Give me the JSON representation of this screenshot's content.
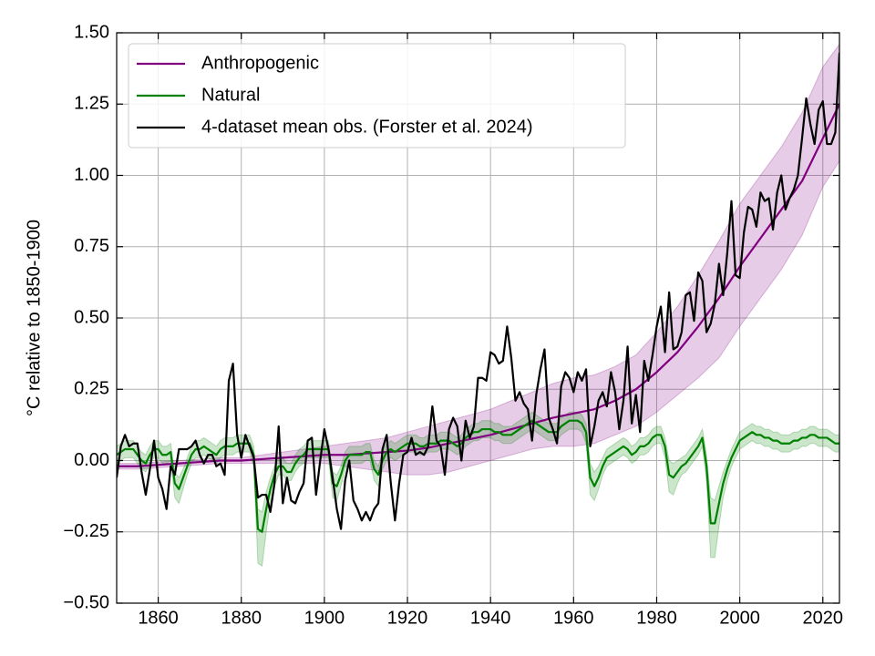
{
  "chart_data": {
    "type": "line",
    "ylabel": "°C relative to 1850-1900",
    "xlim": [
      1850,
      2024
    ],
    "ylim": [
      -0.5,
      1.5
    ],
    "xticks": [
      1860,
      1880,
      1900,
      1920,
      1940,
      1960,
      1980,
      2000,
      2020
    ],
    "yticks": [
      {
        "value": -0.5,
        "label": "−0.50"
      },
      {
        "value": -0.25,
        "label": "−0.25"
      },
      {
        "value": 0,
        "label": "0.00"
      },
      {
        "value": 0.25,
        "label": "0.25"
      },
      {
        "value": 0.5,
        "label": "0.50"
      },
      {
        "value": 0.75,
        "label": "0.75"
      },
      {
        "value": 1,
        "label": "1.00"
      },
      {
        "value": 1.25,
        "label": "1.25"
      },
      {
        "value": 1.5,
        "label": "1.50"
      }
    ],
    "grid": true,
    "legend": "upper left",
    "x": [
      1850,
      1851,
      1852,
      1853,
      1854,
      1855,
      1856,
      1857,
      1858,
      1859,
      1860,
      1861,
      1862,
      1863,
      1864,
      1865,
      1866,
      1867,
      1868,
      1869,
      1870,
      1871,
      1872,
      1873,
      1874,
      1875,
      1876,
      1877,
      1878,
      1879,
      1880,
      1881,
      1882,
      1883,
      1884,
      1885,
      1886,
      1887,
      1888,
      1889,
      1890,
      1891,
      1892,
      1893,
      1894,
      1895,
      1896,
      1897,
      1898,
      1899,
      1900,
      1901,
      1902,
      1903,
      1904,
      1905,
      1906,
      1907,
      1908,
      1909,
      1910,
      1911,
      1912,
      1913,
      1914,
      1915,
      1916,
      1917,
      1918,
      1919,
      1920,
      1921,
      1922,
      1923,
      1924,
      1925,
      1926,
      1927,
      1928,
      1929,
      1930,
      1931,
      1932,
      1933,
      1934,
      1935,
      1936,
      1937,
      1938,
      1939,
      1940,
      1941,
      1942,
      1943,
      1944,
      1945,
      1946,
      1947,
      1948,
      1949,
      1950,
      1951,
      1952,
      1953,
      1954,
      1955,
      1956,
      1957,
      1958,
      1959,
      1960,
      1961,
      1962,
      1963,
      1964,
      1965,
      1966,
      1967,
      1968,
      1969,
      1970,
      1971,
      1972,
      1973,
      1974,
      1975,
      1976,
      1977,
      1978,
      1979,
      1980,
      1981,
      1982,
      1983,
      1984,
      1985,
      1986,
      1987,
      1988,
      1989,
      1990,
      1991,
      1992,
      1993,
      1994,
      1995,
      1996,
      1997,
      1998,
      1999,
      2000,
      2001,
      2002,
      2003,
      2004,
      2005,
      2006,
      2007,
      2008,
      2009,
      2010,
      2011,
      2012,
      2013,
      2014,
      2015,
      2016,
      2017,
      2018,
      2019,
      2020,
      2021,
      2022,
      2023,
      2024
    ],
    "series": [
      {
        "name": "Anthropogenic",
        "color": "#800080",
        "x": [
          1850,
          1855,
          1860,
          1865,
          1870,
          1875,
          1880,
          1885,
          1890,
          1895,
          1900,
          1905,
          1910,
          1915,
          1920,
          1925,
          1930,
          1935,
          1940,
          1945,
          1950,
          1955,
          1960,
          1965,
          1970,
          1975,
          1980,
          1985,
          1990,
          1995,
          2000,
          2005,
          2010,
          2015,
          2020,
          2024
        ],
        "values": [
          -0.02,
          -0.02,
          -0.015,
          -0.01,
          -0.005,
          0.0,
          0.0,
          0.005,
          0.01,
          0.015,
          0.02,
          0.02,
          0.025,
          0.03,
          0.035,
          0.045,
          0.06,
          0.075,
          0.09,
          0.11,
          0.13,
          0.15,
          0.165,
          0.18,
          0.21,
          0.25,
          0.31,
          0.38,
          0.47,
          0.57,
          0.68,
          0.78,
          0.88,
          0.98,
          1.13,
          1.25
        ],
        "band_lower": [
          -0.03,
          -0.03,
          -0.025,
          -0.02,
          -0.015,
          -0.01,
          -0.01,
          -0.01,
          -0.01,
          -0.01,
          -0.01,
          -0.02,
          -0.03,
          -0.04,
          -0.05,
          -0.05,
          -0.04,
          -0.02,
          0.0,
          0.02,
          0.04,
          0.05,
          0.05,
          0.06,
          0.09,
          0.12,
          0.17,
          0.23,
          0.29,
          0.36,
          0.47,
          0.57,
          0.67,
          0.79,
          0.96,
          1.05
        ],
        "band_upper": [
          -0.01,
          -0.01,
          -0.005,
          0.0,
          0.005,
          0.01,
          0.01,
          0.02,
          0.03,
          0.04,
          0.05,
          0.06,
          0.07,
          0.08,
          0.1,
          0.12,
          0.14,
          0.16,
          0.18,
          0.21,
          0.24,
          0.27,
          0.29,
          0.3,
          0.33,
          0.37,
          0.45,
          0.54,
          0.65,
          0.77,
          0.9,
          1.0,
          1.1,
          1.22,
          1.38,
          1.46
        ]
      },
      {
        "name": "Natural",
        "color": "#008000",
        "values": [
          0.02,
          0.03,
          0.04,
          0.04,
          0.04,
          0.02,
          0.0,
          -0.01,
          0.02,
          0.04,
          0.04,
          0.02,
          0.02,
          0.03,
          -0.08,
          -0.1,
          -0.06,
          -0.02,
          0.02,
          0.04,
          0.04,
          0.05,
          0.04,
          0.03,
          0.02,
          0.04,
          0.05,
          0.05,
          0.05,
          0.06,
          0.06,
          0.06,
          0.06,
          0.02,
          -0.24,
          -0.25,
          -0.17,
          -0.1,
          -0.05,
          -0.02,
          -0.02,
          -0.04,
          -0.04,
          -0.01,
          0.01,
          0.02,
          0.04,
          0.04,
          0.04,
          0.04,
          0.04,
          0.04,
          -0.08,
          -0.09,
          -0.05,
          0.0,
          0.02,
          0.02,
          0.02,
          0.02,
          0.03,
          0.03,
          -0.03,
          -0.05,
          0.0,
          0.03,
          0.04,
          0.03,
          0.04,
          0.05,
          0.06,
          0.06,
          0.06,
          0.05,
          0.05,
          0.06,
          0.06,
          0.06,
          0.07,
          0.07,
          0.07,
          0.06,
          0.05,
          0.06,
          0.08,
          0.09,
          0.1,
          0.1,
          0.11,
          0.11,
          0.11,
          0.1,
          0.1,
          0.09,
          0.09,
          0.09,
          0.1,
          0.11,
          0.12,
          0.13,
          0.14,
          0.13,
          0.12,
          0.11,
          0.1,
          0.1,
          0.1,
          0.12,
          0.13,
          0.14,
          0.14,
          0.14,
          0.13,
          0.1,
          -0.06,
          -0.09,
          -0.06,
          -0.02,
          0.01,
          0.02,
          0.03,
          0.04,
          0.05,
          0.04,
          0.02,
          0.03,
          0.05,
          0.05,
          0.06,
          0.08,
          0.09,
          0.09,
          0.05,
          -0.05,
          -0.06,
          -0.04,
          -0.02,
          -0.01,
          0.01,
          0.03,
          0.05,
          0.08,
          -0.02,
          -0.22,
          -0.22,
          -0.15,
          -0.08,
          -0.03,
          0.01,
          0.04,
          0.07,
          0.08,
          0.09,
          0.1,
          0.09,
          0.09,
          0.08,
          0.08,
          0.07,
          0.07,
          0.06,
          0.06,
          0.06,
          0.07,
          0.07,
          0.08,
          0.08,
          0.09,
          0.09,
          0.08,
          0.08,
          0.08,
          0.07,
          0.06,
          0.06
        ],
        "band_lower": [
          -0.01,
          0.0,
          0.01,
          0.01,
          0.01,
          -0.01,
          -0.03,
          -0.04,
          -0.01,
          0.01,
          0.01,
          -0.01,
          -0.01,
          0.0,
          -0.13,
          -0.15,
          -0.1,
          -0.05,
          -0.01,
          0.01,
          0.01,
          0.02,
          0.01,
          0.0,
          -0.01,
          0.01,
          0.02,
          0.02,
          0.02,
          0.03,
          0.03,
          0.03,
          0.03,
          -0.02,
          -0.36,
          -0.37,
          -0.25,
          -0.15,
          -0.09,
          -0.05,
          -0.05,
          -0.07,
          -0.07,
          -0.04,
          -0.02,
          -0.01,
          0.01,
          0.01,
          0.01,
          0.01,
          0.01,
          0.01,
          -0.13,
          -0.14,
          -0.09,
          -0.03,
          -0.01,
          -0.01,
          -0.01,
          -0.01,
          0.0,
          0.0,
          -0.07,
          -0.09,
          -0.03,
          0.0,
          0.01,
          0.0,
          0.01,
          0.02,
          0.03,
          0.03,
          0.03,
          0.02,
          0.02,
          0.03,
          0.03,
          0.03,
          0.04,
          0.04,
          0.04,
          0.03,
          0.02,
          0.03,
          0.05,
          0.06,
          0.07,
          0.07,
          0.08,
          0.08,
          0.08,
          0.07,
          0.07,
          0.06,
          0.06,
          0.06,
          0.07,
          0.08,
          0.09,
          0.1,
          0.11,
          0.1,
          0.09,
          0.08,
          0.07,
          0.07,
          0.07,
          0.09,
          0.1,
          0.11,
          0.11,
          0.11,
          0.1,
          0.06,
          -0.12,
          -0.14,
          -0.1,
          -0.05,
          -0.02,
          -0.01,
          0.0,
          0.01,
          0.02,
          0.01,
          -0.01,
          0.0,
          0.02,
          0.02,
          0.03,
          0.05,
          0.06,
          0.06,
          0.01,
          -0.11,
          -0.12,
          -0.08,
          -0.05,
          -0.04,
          -0.02,
          0.0,
          0.02,
          0.05,
          -0.07,
          -0.34,
          -0.34,
          -0.23,
          -0.13,
          -0.07,
          -0.02,
          0.01,
          0.04,
          0.05,
          0.06,
          0.07,
          0.06,
          0.06,
          0.05,
          0.05,
          0.04,
          0.04,
          0.03,
          0.03,
          0.03,
          0.04,
          0.04,
          0.05,
          0.05,
          0.06,
          0.06,
          0.05,
          0.05,
          0.05,
          0.04,
          0.03,
          0.03
        ],
        "band_upper": [
          0.05,
          0.06,
          0.07,
          0.07,
          0.07,
          0.05,
          0.03,
          0.02,
          0.05,
          0.07,
          0.07,
          0.05,
          0.05,
          0.06,
          -0.04,
          -0.06,
          -0.03,
          0.01,
          0.05,
          0.07,
          0.07,
          0.08,
          0.07,
          0.06,
          0.05,
          0.07,
          0.08,
          0.08,
          0.08,
          0.09,
          0.09,
          0.09,
          0.09,
          0.05,
          -0.17,
          -0.18,
          -0.11,
          -0.06,
          -0.02,
          0.01,
          0.01,
          -0.01,
          -0.01,
          0.02,
          0.04,
          0.05,
          0.07,
          0.07,
          0.07,
          0.07,
          0.07,
          0.07,
          -0.04,
          -0.05,
          -0.02,
          0.03,
          0.05,
          0.05,
          0.05,
          0.05,
          0.06,
          0.06,
          0.0,
          -0.02,
          0.03,
          0.06,
          0.07,
          0.06,
          0.07,
          0.08,
          0.09,
          0.09,
          0.09,
          0.08,
          0.08,
          0.09,
          0.09,
          0.09,
          0.1,
          0.1,
          0.1,
          0.09,
          0.08,
          0.09,
          0.11,
          0.12,
          0.13,
          0.13,
          0.14,
          0.14,
          0.14,
          0.13,
          0.13,
          0.12,
          0.12,
          0.12,
          0.13,
          0.14,
          0.15,
          0.16,
          0.17,
          0.16,
          0.15,
          0.14,
          0.13,
          0.13,
          0.13,
          0.15,
          0.16,
          0.17,
          0.17,
          0.17,
          0.16,
          0.13,
          -0.01,
          -0.04,
          -0.02,
          0.01,
          0.04,
          0.05,
          0.06,
          0.07,
          0.08,
          0.07,
          0.05,
          0.06,
          0.08,
          0.08,
          0.09,
          0.11,
          0.12,
          0.12,
          0.08,
          0.0,
          -0.01,
          0.0,
          0.01,
          0.02,
          0.04,
          0.06,
          0.08,
          0.11,
          0.02,
          -0.13,
          -0.14,
          -0.09,
          -0.04,
          0.0,
          0.04,
          0.07,
          0.1,
          0.11,
          0.12,
          0.13,
          0.12,
          0.12,
          0.11,
          0.11,
          0.1,
          0.1,
          0.09,
          0.09,
          0.09,
          0.1,
          0.1,
          0.11,
          0.11,
          0.12,
          0.12,
          0.11,
          0.11,
          0.11,
          0.1,
          0.09,
          0.09
        ]
      },
      {
        "name": "4-dataset mean obs. (Forster et al. 2024)",
        "color": "#000000",
        "values": [
          -0.06,
          0.05,
          0.09,
          0.05,
          0.06,
          0.06,
          -0.04,
          -0.12,
          -0.03,
          0.07,
          -0.06,
          -0.1,
          -0.17,
          -0.02,
          -0.05,
          0.04,
          0.04,
          0.04,
          0.05,
          0.07,
          0.02,
          -0.01,
          0.02,
          0.02,
          -0.02,
          -0.01,
          -0.05,
          0.28,
          0.34,
          0.09,
          0.01,
          0.09,
          0.05,
          0.01,
          -0.13,
          -0.12,
          -0.12,
          -0.18,
          -0.08,
          0.12,
          -0.15,
          -0.06,
          -0.14,
          -0.15,
          -0.11,
          -0.08,
          0.07,
          0.08,
          -0.12,
          0.0,
          0.11,
          0.04,
          -0.06,
          -0.17,
          -0.24,
          -0.07,
          0.0,
          -0.14,
          -0.17,
          -0.21,
          -0.18,
          -0.21,
          -0.17,
          -0.15,
          0.04,
          0.09,
          -0.08,
          -0.21,
          -0.08,
          0.02,
          0.03,
          0.08,
          0.02,
          0.03,
          0.02,
          0.05,
          0.19,
          0.07,
          0.05,
          -0.05,
          0.11,
          0.15,
          0.12,
          0.0,
          0.14,
          0.08,
          0.12,
          0.29,
          0.29,
          0.28,
          0.38,
          0.37,
          0.34,
          0.35,
          0.47,
          0.36,
          0.21,
          0.24,
          0.2,
          0.18,
          0.07,
          0.23,
          0.32,
          0.39,
          0.15,
          0.11,
          0.06,
          0.26,
          0.31,
          0.29,
          0.24,
          0.31,
          0.28,
          0.32,
          0.05,
          0.12,
          0.21,
          0.24,
          0.19,
          0.31,
          0.24,
          0.11,
          0.21,
          0.4,
          0.13,
          0.23,
          0.1,
          0.35,
          0.28,
          0.37,
          0.47,
          0.54,
          0.38,
          0.59,
          0.39,
          0.4,
          0.45,
          0.58,
          0.59,
          0.49,
          0.66,
          0.63,
          0.45,
          0.48,
          0.55,
          0.69,
          0.58,
          0.73,
          0.91,
          0.65,
          0.64,
          0.8,
          0.89,
          0.88,
          0.82,
          0.94,
          0.91,
          0.92,
          0.81,
          0.94,
          1.0,
          0.88,
          0.92,
          0.95,
          1.0,
          1.13,
          1.27,
          1.18,
          1.11,
          1.23,
          1.26,
          1.11,
          1.11,
          1.15,
          1.43
        ]
      }
    ]
  }
}
